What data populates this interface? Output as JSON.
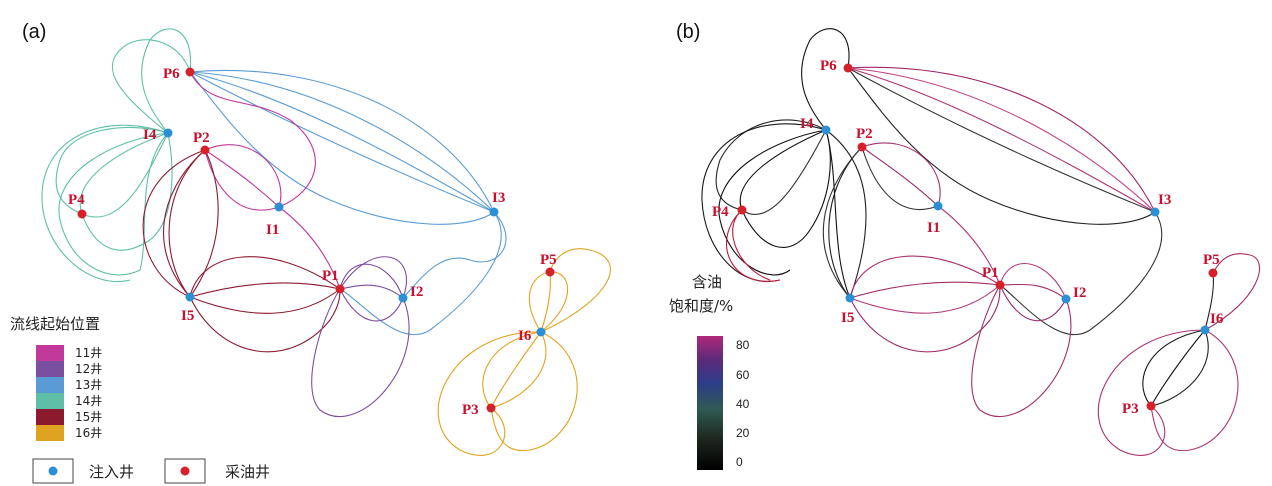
{
  "panels": [
    {
      "label": "(a)"
    },
    {
      "label": "(b)"
    }
  ],
  "wells": {
    "producers": [
      "P6",
      "P2",
      "P4",
      "P1",
      "P5",
      "P3"
    ],
    "injectors": [
      "I4",
      "I1",
      "I3",
      "I5",
      "I2",
      "I6"
    ]
  },
  "legend_a": {
    "title": "流线起始位置",
    "items": [
      {
        "label": "11井",
        "color": "#c0399b"
      },
      {
        "label": "12井",
        "color": "#7b4fa0"
      },
      {
        "label": "13井",
        "color": "#5a9bd5"
      },
      {
        "label": "14井",
        "color": "#5fbfa6"
      },
      {
        "label": "15井",
        "color": "#8b1a2e"
      },
      {
        "label": "16井",
        "color": "#e0a321"
      }
    ],
    "injector_label": "注入井",
    "producer_label": "采油井",
    "injector_color": "#2b8fd6",
    "producer_color": "#d6202a"
  },
  "colorbar_b": {
    "title_line1": "含油",
    "title_line2": "饱和度/%",
    "ticks": [
      "80",
      "60",
      "40",
      "20",
      "0"
    ]
  }
}
